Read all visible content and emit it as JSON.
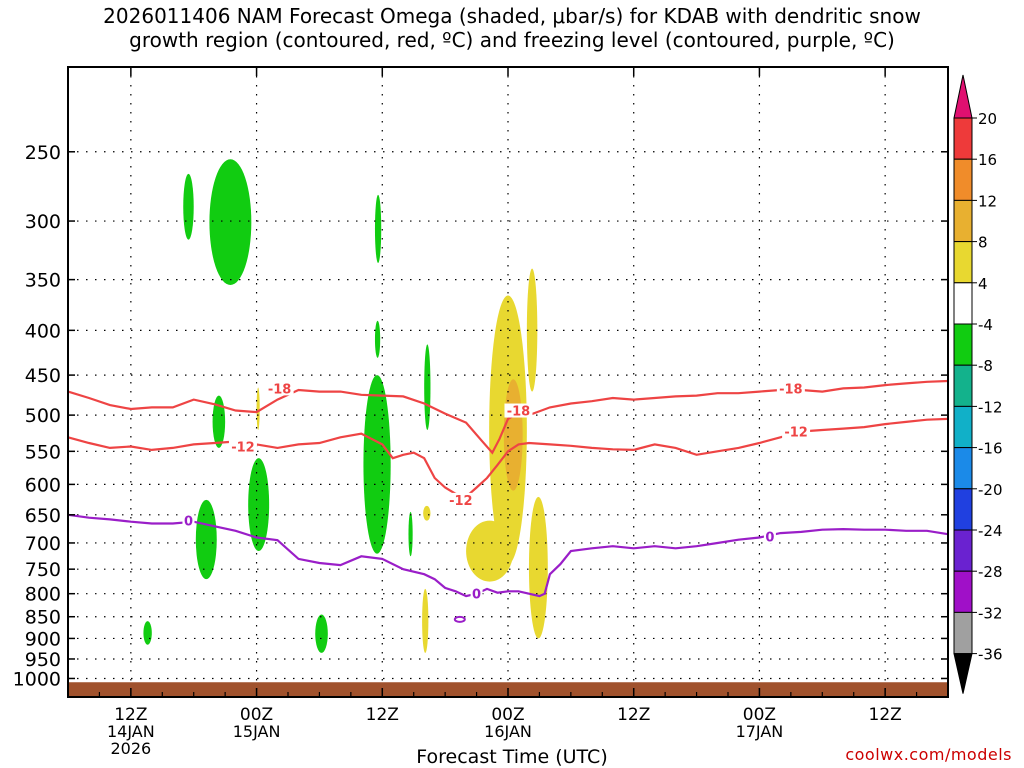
{
  "title": {
    "line1": "2026011406 NAM Forecast Omega (shaded, μbar/s) for KDAB with dendritic snow",
    "line2": "growth region (contoured, red, ºC) and freezing level (contoured, purple, ºC)"
  },
  "credit": "coolwx.com/models",
  "chart_data": {
    "type": "heatmap",
    "title": "2026011406 NAM Forecast Omega (shaded, μbar/s) for KDAB with dendritic snow growth region (contoured, red, ºC) and freezing level (contoured, purple, ºC)",
    "xlabel": "Forecast Time (UTC)",
    "ylabel": "",
    "x_unit": "hours since 2026-01-14 06Z",
    "xlim": [
      0,
      84
    ],
    "y_scale": "log pressure (inverted)",
    "ylim": [
      1050,
      200
    ],
    "grid": true,
    "x_ticks": [
      {
        "hour": 6,
        "label": "12Z",
        "sub1": "14JAN",
        "sub2": "2026"
      },
      {
        "hour": 18,
        "label": "00Z",
        "sub1": "15JAN",
        "sub2": ""
      },
      {
        "hour": 30,
        "label": "12Z",
        "sub1": "",
        "sub2": ""
      },
      {
        "hour": 42,
        "label": "00Z",
        "sub1": "16JAN",
        "sub2": ""
      },
      {
        "hour": 54,
        "label": "12Z",
        "sub1": "",
        "sub2": ""
      },
      {
        "hour": 66,
        "label": "00Z",
        "sub1": "17JAN",
        "sub2": ""
      },
      {
        "hour": 78,
        "label": "12Z",
        "sub1": "",
        "sub2": ""
      }
    ],
    "y_ticks": [
      250,
      300,
      350,
      400,
      450,
      500,
      550,
      600,
      650,
      700,
      750,
      800,
      850,
      900,
      950,
      1000
    ],
    "colorbar": {
      "labels": [
        "20",
        "16",
        "12",
        "8",
        "4",
        "-4",
        "-8",
        "-12",
        "-16",
        "-20",
        "-24",
        "-28",
        "-32",
        "-36"
      ],
      "bands": [
        {
          "from": 16,
          "to": 20,
          "color": "#ee3a3a"
        },
        {
          "from": 12,
          "to": 16,
          "color": "#f08c2a"
        },
        {
          "from": 8,
          "to": 12,
          "color": "#e8b030"
        },
        {
          "from": 4,
          "to": 8,
          "color": "#e8d830"
        },
        {
          "from": -4,
          "to": 4,
          "color": "#ffffff"
        },
        {
          "from": -8,
          "to": -4,
          "color": "#11cc11"
        },
        {
          "from": -12,
          "to": -8,
          "color": "#13b28c"
        },
        {
          "from": -16,
          "to": -12,
          "color": "#11b0c8"
        },
        {
          "from": -20,
          "to": -16,
          "color": "#1b8ae8"
        },
        {
          "from": -24,
          "to": -20,
          "color": "#2040e0"
        },
        {
          "from": -28,
          "to": -24,
          "color": "#6a22d0"
        },
        {
          "from": -32,
          "to": -28,
          "color": "#a010c8"
        },
        {
          "from": -36,
          "to": -32,
          "color": "#a0a0a0"
        }
      ],
      "top_arrow_color": "#e01070",
      "bottom_arrow_color": "#000000"
    },
    "omega_regions": [
      {
        "value": -6,
        "t0": 11.0,
        "t1": 12.0,
        "p_top": 265,
        "p_bot": 315
      },
      {
        "value": -6,
        "t0": 13.5,
        "t1": 17.5,
        "p_top": 255,
        "p_bot": 355
      },
      {
        "value": -6,
        "t0": 29.3,
        "t1": 29.9,
        "p_top": 280,
        "p_bot": 335
      },
      {
        "value": -6,
        "t0": 29.3,
        "t1": 29.8,
        "p_top": 390,
        "p_bot": 430
      },
      {
        "value": -6,
        "t0": 34.0,
        "t1": 34.6,
        "p_top": 415,
        "p_bot": 520
      },
      {
        "value": -6,
        "t0": 13.8,
        "t1": 15.0,
        "p_top": 475,
        "p_bot": 545
      },
      {
        "value": -6,
        "t0": 12.2,
        "t1": 14.2,
        "p_top": 625,
        "p_bot": 770
      },
      {
        "value": -6,
        "t0": 17.2,
        "t1": 19.2,
        "p_top": 560,
        "p_bot": 715
      },
      {
        "value": -6,
        "t0": 28.2,
        "t1": 30.8,
        "p_top": 450,
        "p_bot": 720
      },
      {
        "value": -6,
        "t0": 32.5,
        "t1": 32.9,
        "p_top": 645,
        "p_bot": 725
      },
      {
        "value": -6,
        "t0": 7.2,
        "t1": 8.0,
        "p_top": 860,
        "p_bot": 915
      },
      {
        "value": -6,
        "t0": 23.6,
        "t1": 24.8,
        "p_top": 845,
        "p_bot": 935
      },
      {
        "value": 6,
        "t0": 40.2,
        "t1": 43.8,
        "p_top": 365,
        "p_bot": 740
      },
      {
        "value": 6,
        "t0": 43.8,
        "t1": 44.8,
        "p_top": 340,
        "p_bot": 470
      },
      {
        "value": 6,
        "t0": 38.0,
        "t1": 42.5,
        "p_top": 660,
        "p_bot": 775
      },
      {
        "value": 6,
        "t0": 44.0,
        "t1": 45.8,
        "p_top": 620,
        "p_bot": 900
      },
      {
        "value": 6,
        "t0": 33.8,
        "t1": 34.4,
        "p_top": 790,
        "p_bot": 935
      },
      {
        "value": 6,
        "t0": 33.9,
        "t1": 34.6,
        "p_top": 635,
        "p_bot": 660
      },
      {
        "value": 6,
        "t0": 18.0,
        "t1": 18.3,
        "p_top": 465,
        "p_bot": 520
      },
      {
        "value": 10,
        "t0": 41.6,
        "t1": 43.4,
        "p_top": 455,
        "p_bot": 610
      }
    ],
    "series": [
      {
        "name": "-18",
        "color": "#ee4444",
        "x": [
          0,
          2,
          4,
          6,
          8,
          10,
          12,
          14,
          16,
          18,
          20,
          22,
          24,
          26,
          28,
          30,
          32,
          34,
          36,
          38,
          39.5,
          40.5,
          41.2,
          42,
          43,
          44,
          46,
          48,
          50,
          52,
          54,
          56,
          58,
          60,
          62,
          64,
          66,
          68,
          70,
          72,
          74,
          76,
          78,
          80,
          82,
          84
        ],
        "y": [
          470,
          478,
          487,
          492,
          490,
          490,
          480,
          486,
          494,
          496,
          480,
          468,
          470,
          470,
          474,
          475,
          476,
          485,
          498,
          510,
          535,
          552,
          532,
          505,
          497,
          500,
          490,
          485,
          482,
          478,
          480,
          478,
          476,
          475,
          472,
          472,
          470,
          468,
          468,
          470,
          466,
          465,
          462,
          460,
          458,
          457
        ]
      },
      {
        "name": "-12",
        "color": "#ee4444",
        "x": [
          0,
          2,
          4,
          6,
          8,
          10,
          12,
          14,
          16,
          18,
          20,
          22,
          24,
          26,
          28,
          30,
          31,
          32,
          33,
          34,
          35,
          36,
          37,
          38,
          39,
          40,
          41,
          42,
          43,
          44,
          46,
          48,
          50,
          52,
          54,
          56,
          58,
          60,
          62,
          64,
          66,
          68,
          70,
          72,
          74,
          76,
          78,
          80,
          82,
          84
        ],
        "y": [
          530,
          538,
          545,
          543,
          548,
          545,
          540,
          538,
          536,
          540,
          545,
          540,
          538,
          530,
          525,
          540,
          560,
          555,
          552,
          560,
          590,
          605,
          615,
          620,
          605,
          590,
          570,
          550,
          540,
          538,
          540,
          542,
          545,
          547,
          548,
          540,
          545,
          555,
          550,
          545,
          538,
          530,
          522,
          520,
          518,
          516,
          512,
          509,
          506,
          505
        ]
      },
      {
        "name": "0",
        "color": "#9a1ec8",
        "x": [
          0,
          2,
          4,
          6,
          8,
          10,
          12,
          14,
          16,
          18,
          20,
          22,
          24,
          26,
          28,
          30,
          32,
          34,
          35,
          36,
          37,
          38,
          39,
          40,
          41,
          42,
          43,
          44,
          45,
          45.5,
          46,
          47,
          48,
          50,
          52,
          54,
          56,
          58,
          60,
          62,
          64,
          66,
          68,
          70,
          72,
          74,
          76,
          78,
          80,
          82,
          84
        ],
        "y": [
          650,
          655,
          658,
          662,
          665,
          665,
          662,
          670,
          678,
          690,
          695,
          730,
          738,
          742,
          725,
          730,
          750,
          760,
          770,
          788,
          795,
          805,
          800,
          790,
          798,
          795,
          795,
          800,
          805,
          800,
          760,
          740,
          715,
          710,
          706,
          710,
          706,
          710,
          706,
          700,
          694,
          690,
          682,
          680,
          676,
          675,
          676,
          676,
          678,
          678,
          684
        ]
      }
    ],
    "contour_labels": [
      {
        "text": "-18",
        "x": 20.2,
        "y": 466,
        "color": "#ee4444"
      },
      {
        "text": "-18",
        "x": 43.0,
        "y": 494,
        "color": "#ee4444"
      },
      {
        "text": "-18",
        "x": 69.0,
        "y": 466,
        "color": "#ee4444"
      },
      {
        "text": "-12",
        "x": 16.7,
        "y": 543,
        "color": "#ee4444"
      },
      {
        "text": "-12",
        "x": 37.5,
        "y": 625,
        "color": "#ee4444"
      },
      {
        "text": "-12",
        "x": 69.5,
        "y": 522,
        "color": "#ee4444"
      },
      {
        "text": "0",
        "x": 11.5,
        "y": 660,
        "color": "#9a1ec8"
      },
      {
        "text": "0",
        "x": 39.0,
        "y": 800,
        "color": "#9a1ec8"
      },
      {
        "text": "0",
        "x": 67.0,
        "y": 688,
        "color": "#9a1ec8"
      }
    ],
    "isolated_contours": [
      {
        "name": "0",
        "color": "#9a1ec8",
        "x": 37.4,
        "y": 856
      }
    ]
  }
}
